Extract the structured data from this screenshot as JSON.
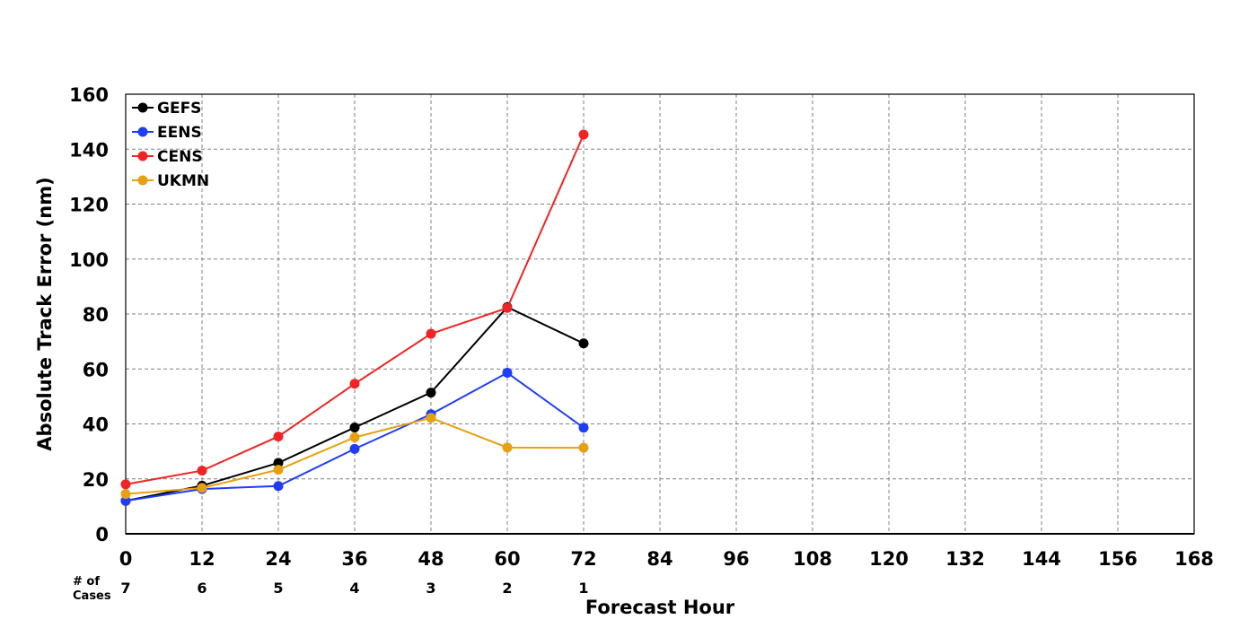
{
  "chart_data": {
    "type": "line",
    "xlabel": "Forecast Hour",
    "ylabel": "Absolute Track Error (nm)",
    "xlim": [
      0,
      168
    ],
    "ylim": [
      0,
      160
    ],
    "xticks": [
      0,
      12,
      24,
      36,
      48,
      60,
      72,
      84,
      96,
      108,
      120,
      132,
      144,
      156,
      168
    ],
    "yticks": [
      0,
      20,
      40,
      60,
      80,
      100,
      120,
      140,
      160
    ],
    "grid": true,
    "legend_position": "top-left",
    "x": [
      0,
      12,
      24,
      36,
      48,
      60,
      72
    ],
    "series": [
      {
        "name": "GEFS",
        "color": "#000000",
        "values": [
          12,
          17.5,
          25.8,
          38.7,
          51.4,
          82.5,
          69.3
        ]
      },
      {
        "name": "EENS",
        "color": "#1f3df5",
        "values": [
          12,
          16.3,
          17.4,
          30.9,
          43.5,
          58.6,
          38.6
        ]
      },
      {
        "name": "CENS",
        "color": "#f02424",
        "values": [
          18,
          23,
          35.4,
          54.6,
          72.8,
          82.2,
          145.3
        ]
      },
      {
        "name": "UKMN",
        "color": "#e6a012",
        "values": [
          14.5,
          16.7,
          23.3,
          35.1,
          42.2,
          31.4,
          31.3
        ]
      }
    ],
    "cases": {
      "label": "# of Cases",
      "label_lines": [
        "# of",
        "Cases"
      ],
      "x": [
        0,
        12,
        24,
        36,
        48,
        60,
        72
      ],
      "values": [
        "7",
        "6",
        "5",
        "4",
        "3",
        "2",
        "1"
      ]
    }
  }
}
